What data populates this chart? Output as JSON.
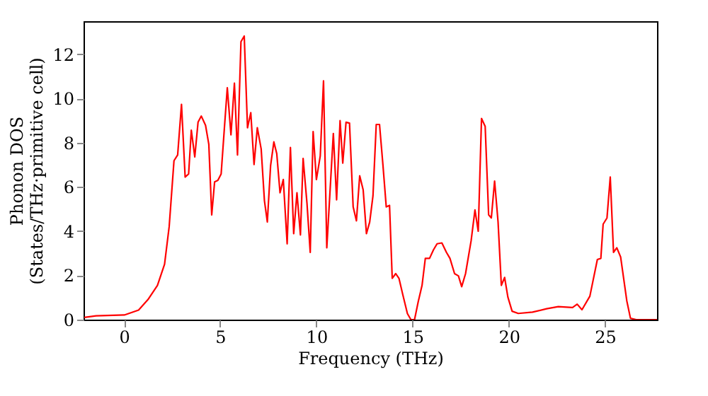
{
  "chart_data": {
    "type": "line",
    "xlabel": "Frequency (THz)",
    "ylabel": "Phonon DOS\n(States/THz·primitive cell)",
    "xlim": [
      -2.1,
      27.7
    ],
    "ylim": [
      0,
      13.5
    ],
    "xticks": [
      0,
      5,
      10,
      15,
      20,
      25
    ],
    "yticks": [
      0,
      2,
      4,
      6,
      8,
      10,
      12
    ],
    "grid": false,
    "x": [
      -2.06,
      -1.45,
      0.02,
      0.76,
      1.25,
      1.74,
      2.11,
      2.35,
      2.6,
      2.79,
      2.99,
      3.18,
      3.36,
      3.5,
      3.68,
      3.85,
      4.02,
      4.24,
      4.41,
      4.56,
      4.71,
      4.88,
      5.05,
      5.22,
      5.37,
      5.56,
      5.74,
      5.9,
      6.08,
      6.25,
      6.42,
      6.59,
      6.76,
      6.93,
      7.13,
      7.3,
      7.45,
      7.62,
      7.79,
      7.94,
      8.11,
      8.28,
      8.48,
      8.65,
      8.82,
      8.99,
      9.17,
      9.31,
      9.51,
      9.68,
      9.83,
      10.0,
      10.2,
      10.37,
      10.54,
      10.88,
      11.05,
      11.23,
      11.37,
      11.54,
      11.72,
      11.91,
      12.08,
      12.25,
      12.43,
      12.6,
      12.77,
      12.94,
      13.11,
      13.28,
      13.46,
      13.63,
      13.8,
      13.94,
      14.12,
      14.29,
      14.49,
      14.73,
      14.91,
      15.1,
      15.29,
      15.49,
      15.66,
      15.88,
      16.08,
      16.27,
      16.52,
      16.76,
      16.94,
      17.18,
      17.38,
      17.55,
      17.75,
      18.04,
      18.24,
      18.41,
      18.58,
      18.77,
      18.95,
      19.09,
      19.26,
      19.44,
      19.61,
      19.78,
      19.95,
      20.17,
      20.49,
      21.23,
      21.96,
      22.57,
      23.31,
      23.55,
      23.8,
      24.21,
      24.6,
      24.78,
      24.9,
      25.1,
      25.27,
      25.44,
      25.61,
      25.81,
      26.13,
      26.32,
      26.62,
      27.7
    ],
    "series": [
      {
        "color": "#ff0000",
        "line_style": "solid",
        "marker": "none",
        "values": [
          0.1,
          0.17,
          0.21,
          0.43,
          0.91,
          1.55,
          2.51,
          4.21,
          7.19,
          7.45,
          9.74,
          6.45,
          6.59,
          8.57,
          7.36,
          8.93,
          9.21,
          8.79,
          7.93,
          4.74,
          6.23,
          6.3,
          6.59,
          8.68,
          10.49,
          8.36,
          10.7,
          7.45,
          12.57,
          12.83,
          8.68,
          9.36,
          7.02,
          8.68,
          7.72,
          5.38,
          4.42,
          6.97,
          8.04,
          7.51,
          5.74,
          6.34,
          3.43,
          7.79,
          3.89,
          5.74,
          3.83,
          7.29,
          5.27,
          3.04,
          8.51,
          6.34,
          7.4,
          10.8,
          3.25,
          8.42,
          5.42,
          9.0,
          7.08,
          8.93,
          8.89,
          5.1,
          4.47,
          6.51,
          5.87,
          3.89,
          4.42,
          5.6,
          8.83,
          8.83,
          6.97,
          5.1,
          5.17,
          1.87,
          2.08,
          1.87,
          1.13,
          0.27,
          0,
          0,
          0.81,
          1.55,
          2.77,
          2.77,
          3.15,
          3.43,
          3.47,
          3.04,
          2.77,
          2.08,
          1.98,
          1.49,
          2.08,
          3.57,
          4.96,
          4.0,
          9.1,
          8.74,
          4.74,
          4.6,
          6.27,
          4.42,
          1.55,
          1.91,
          1.02,
          0.38,
          0.28,
          0.34,
          0.49,
          0.59,
          0.55,
          0.7,
          0.45,
          1.06,
          2.72,
          2.77,
          4.32,
          4.6,
          6.45,
          3.04,
          3.25,
          2.83,
          0.85,
          0.06,
          0,
          0
        ]
      }
    ]
  }
}
